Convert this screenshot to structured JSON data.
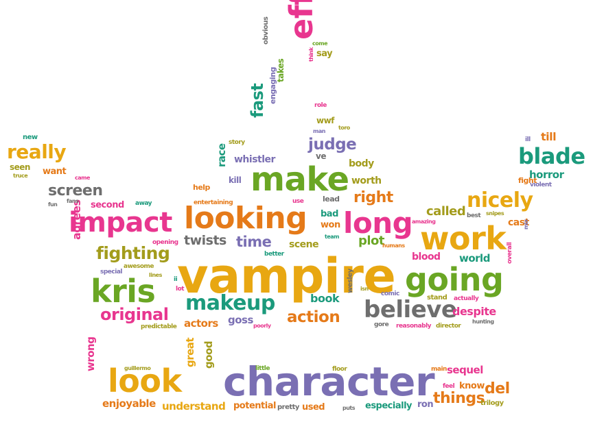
{
  "palette": {
    "pink": "#e8368f",
    "orange": "#e57a19",
    "yellow": "#e8a712",
    "green": "#6aa624",
    "teal": "#1b9a7c",
    "purple": "#7a6fb3",
    "gray": "#6e6e6e",
    "olive": "#a39c1c"
  },
  "words": [
    {
      "text": "vampire",
      "color": "yellow"
    },
    {
      "text": "character",
      "color": "purple"
    },
    {
      "text": "make",
      "color": "green"
    },
    {
      "text": "looking",
      "color": "orange"
    },
    {
      "text": "impact",
      "color": "pink"
    },
    {
      "text": "long",
      "color": "pink"
    },
    {
      "text": "work",
      "color": "yellow"
    },
    {
      "text": "going",
      "color": "green"
    },
    {
      "text": "kris",
      "color": "green"
    },
    {
      "text": "effects",
      "color": "pink"
    },
    {
      "text": "look",
      "color": "yellow"
    },
    {
      "text": "believe",
      "color": "gray"
    },
    {
      "text": "makeup",
      "color": "teal"
    },
    {
      "text": "blade",
      "color": "teal"
    },
    {
      "text": "nicely",
      "color": "yellow"
    },
    {
      "text": "really",
      "color": "yellow"
    },
    {
      "text": "fighting",
      "color": "olive"
    },
    {
      "text": "original",
      "color": "pink"
    },
    {
      "text": "action",
      "color": "orange"
    },
    {
      "text": "screen",
      "color": "gray"
    },
    {
      "text": "judge",
      "color": "purple"
    },
    {
      "text": "fast",
      "color": "teal"
    },
    {
      "text": "time",
      "color": "purple"
    },
    {
      "text": "twists",
      "color": "gray"
    },
    {
      "text": "right",
      "color": "orange"
    },
    {
      "text": "del",
      "color": "orange"
    },
    {
      "text": "things",
      "color": "orange"
    },
    {
      "text": "plot",
      "color": "green"
    },
    {
      "text": "called",
      "color": "olive"
    },
    {
      "text": "agrees",
      "color": "pink"
    },
    {
      "text": "world",
      "color": "teal"
    },
    {
      "text": "blood",
      "color": "pink"
    },
    {
      "text": "cast",
      "color": "orange"
    },
    {
      "text": "horror",
      "color": "teal"
    },
    {
      "text": "till",
      "color": "orange"
    },
    {
      "text": "despite",
      "color": "pink"
    },
    {
      "text": "book",
      "color": "teal"
    },
    {
      "text": "actors",
      "color": "orange"
    },
    {
      "text": "goss",
      "color": "purple"
    },
    {
      "text": "scene",
      "color": "olive"
    },
    {
      "text": "race",
      "color": "teal"
    },
    {
      "text": "whistler",
      "color": "purple"
    },
    {
      "text": "body",
      "color": "olive"
    },
    {
      "text": "worth",
      "color": "olive"
    },
    {
      "text": "bad",
      "color": "teal"
    },
    {
      "text": "won",
      "color": "orange"
    },
    {
      "text": "second",
      "color": "pink"
    },
    {
      "text": "want",
      "color": "orange"
    },
    {
      "text": "seen",
      "color": "olive"
    },
    {
      "text": "kill",
      "color": "purple"
    },
    {
      "text": "help",
      "color": "orange"
    },
    {
      "text": "lead",
      "color": "gray"
    },
    {
      "text": "wrong",
      "color": "pink"
    },
    {
      "text": "great",
      "color": "yellow"
    },
    {
      "text": "good",
      "color": "olive"
    },
    {
      "text": "sequel",
      "color": "pink"
    },
    {
      "text": "enjoyable",
      "color": "orange"
    },
    {
      "text": "understand",
      "color": "yellow"
    },
    {
      "text": "potential",
      "color": "orange"
    },
    {
      "text": "pretty",
      "color": "gray"
    },
    {
      "text": "used",
      "color": "orange"
    },
    {
      "text": "especially",
      "color": "teal"
    },
    {
      "text": "ron",
      "color": "purple"
    },
    {
      "text": "know",
      "color": "orange"
    },
    {
      "text": "feel",
      "color": "pink"
    },
    {
      "text": "trilogy",
      "color": "olive"
    },
    {
      "text": "little",
      "color": "green"
    },
    {
      "text": "floor",
      "color": "olive"
    },
    {
      "text": "main",
      "color": "orange"
    },
    {
      "text": "guillermo",
      "color": "olive"
    },
    {
      "text": "puts",
      "color": "gray"
    },
    {
      "text": "say",
      "color": "olive"
    },
    {
      "text": "come",
      "color": "green"
    },
    {
      "text": "think",
      "color": "pink"
    },
    {
      "text": "obvious",
      "color": "gray"
    },
    {
      "text": "takes",
      "color": "green"
    },
    {
      "text": "engaging",
      "color": "purple"
    },
    {
      "text": "role",
      "color": "pink"
    },
    {
      "text": "wwf",
      "color": "olive"
    },
    {
      "text": "man",
      "color": "purple"
    },
    {
      "text": "toro",
      "color": "olive"
    },
    {
      "text": "story",
      "color": "olive"
    },
    {
      "text": "ve",
      "color": "gray"
    },
    {
      "text": "new",
      "color": "teal"
    },
    {
      "text": "truce",
      "color": "olive"
    },
    {
      "text": "came",
      "color": "pink"
    },
    {
      "text": "fun",
      "color": "gray"
    },
    {
      "text": "fans",
      "color": "gray"
    },
    {
      "text": "away",
      "color": "teal"
    },
    {
      "text": "entertaining",
      "color": "orange"
    },
    {
      "text": "use",
      "color": "pink"
    },
    {
      "text": "team",
      "color": "teal"
    },
    {
      "text": "better",
      "color": "teal"
    },
    {
      "text": "opening",
      "color": "pink"
    },
    {
      "text": "awesome",
      "color": "olive"
    },
    {
      "text": "special",
      "color": "purple"
    },
    {
      "text": "lines",
      "color": "olive"
    },
    {
      "text": "ii",
      "color": "teal"
    },
    {
      "text": "lot",
      "color": "pink"
    },
    {
      "text": "predictable",
      "color": "olive"
    },
    {
      "text": "poorly",
      "color": "pink"
    },
    {
      "text": "wesley",
      "color": "gray"
    },
    {
      "text": "isn",
      "color": "olive"
    },
    {
      "text": "comic",
      "color": "purple"
    },
    {
      "text": "gore",
      "color": "gray"
    },
    {
      "text": "reasonably",
      "color": "pink"
    },
    {
      "text": "director",
      "color": "olive"
    },
    {
      "text": "actually",
      "color": "pink"
    },
    {
      "text": "stand",
      "color": "olive"
    },
    {
      "text": "hunting",
      "color": "gray"
    },
    {
      "text": "humans",
      "color": "orange"
    },
    {
      "text": "amazing",
      "color": "pink"
    },
    {
      "text": "best",
      "color": "gray"
    },
    {
      "text": "snipes",
      "color": "olive"
    },
    {
      "text": "mix",
      "color": "purple"
    },
    {
      "text": "overall",
      "color": "pink"
    },
    {
      "text": "violent",
      "color": "purple"
    },
    {
      "text": "fight",
      "color": "orange"
    },
    {
      "text": "ill",
      "color": "purple"
    }
  ]
}
